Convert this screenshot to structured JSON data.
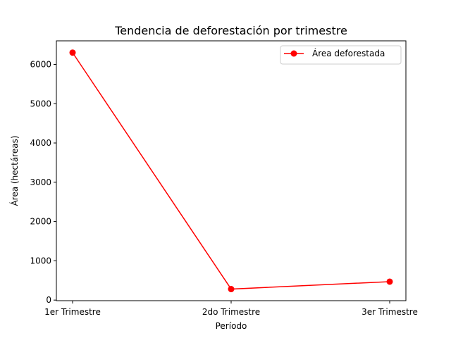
{
  "chart_data": {
    "type": "line",
    "title": "Tendencia de deforestación por trimestre",
    "xlabel": "Período",
    "ylabel": "Área (hectáreas)",
    "categories": [
      "1er Trimestre",
      "2do Trimestre",
      "3er Trimestre"
    ],
    "series": [
      {
        "name": "Área deforestada",
        "values": [
          6300,
          280,
          470
        ],
        "color": "#ff0000",
        "marker": "circle"
      }
    ],
    "ylim": [
      -15,
      6600
    ],
    "yticks": [
      0,
      1000,
      2000,
      3000,
      4000,
      5000,
      6000
    ],
    "grid": false,
    "legend_position": "top-right"
  }
}
